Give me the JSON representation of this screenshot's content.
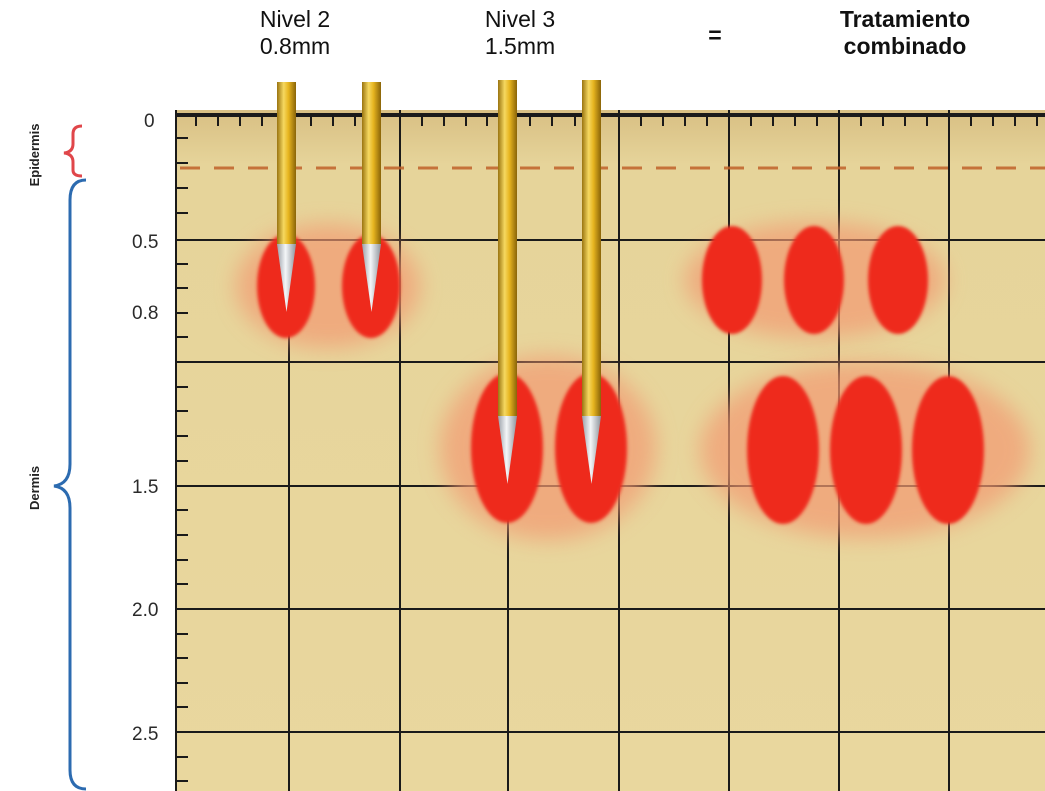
{
  "headers": {
    "level2": {
      "line1": "Nivel 2",
      "line2": "0.8mm"
    },
    "level3": {
      "line1": "Nivel 3",
      "line2": "1.5mm"
    },
    "equals": "=",
    "combined": {
      "line1": "Tratamiento",
      "line2": "combinado"
    }
  },
  "layers": {
    "epidermis": "Epidermis",
    "dermis": "Dermis"
  },
  "depth_axis": {
    "ticks": [
      "0",
      "0.5",
      "0.8",
      "1.5",
      "2.0",
      "2.5"
    ]
  },
  "colors": {
    "skin": "#e6d49a",
    "grid": "#1a1a1a",
    "coagulation": "#ee2a1f",
    "halo": "#f4a078",
    "needle": "#e7b520",
    "epidermis_bracket": "#e0464a",
    "dermis_bracket": "#2c6bb0",
    "epidermis_line": "#c0622a"
  }
}
